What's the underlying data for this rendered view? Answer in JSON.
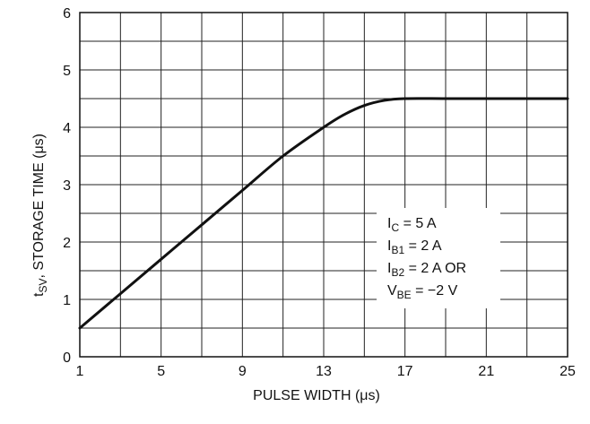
{
  "chart_data": {
    "type": "line",
    "xlabel": "PULSE WIDTH (μs)",
    "ylabel": {
      "main": "t",
      "sub": "SV",
      "rest": ", STORAGE TIME (μs)"
    },
    "xlim": [
      1,
      25
    ],
    "ylim": [
      0,
      6
    ],
    "x_ticks": [
      1,
      5,
      9,
      13,
      17,
      21,
      25
    ],
    "y_ticks": [
      0,
      1,
      2,
      3,
      4,
      5,
      6
    ],
    "x_grid_step": 2,
    "y_grid_step": 0.5,
    "grid": true,
    "series": [
      {
        "x": [
          1,
          3,
          5,
          7,
          9,
          11,
          13,
          14,
          15,
          16,
          17,
          19,
          21,
          23,
          25
        ],
        "y": [
          0.5,
          1.1,
          1.7,
          2.3,
          2.9,
          3.5,
          4.0,
          4.22,
          4.38,
          4.47,
          4.5,
          4.5,
          4.5,
          4.5,
          4.5
        ],
        "color": "#111111"
      }
    ],
    "annotations": [
      {
        "main": "I",
        "sub": "C",
        "rest": " = 5 A"
      },
      {
        "main": "I",
        "sub": "B1",
        "rest": " = 2 A"
      },
      {
        "main": "I",
        "sub": "B2",
        "rest": " = 2 A OR"
      },
      {
        "main": "V",
        "sub": "BE",
        "rest": " = −2 V"
      }
    ]
  }
}
